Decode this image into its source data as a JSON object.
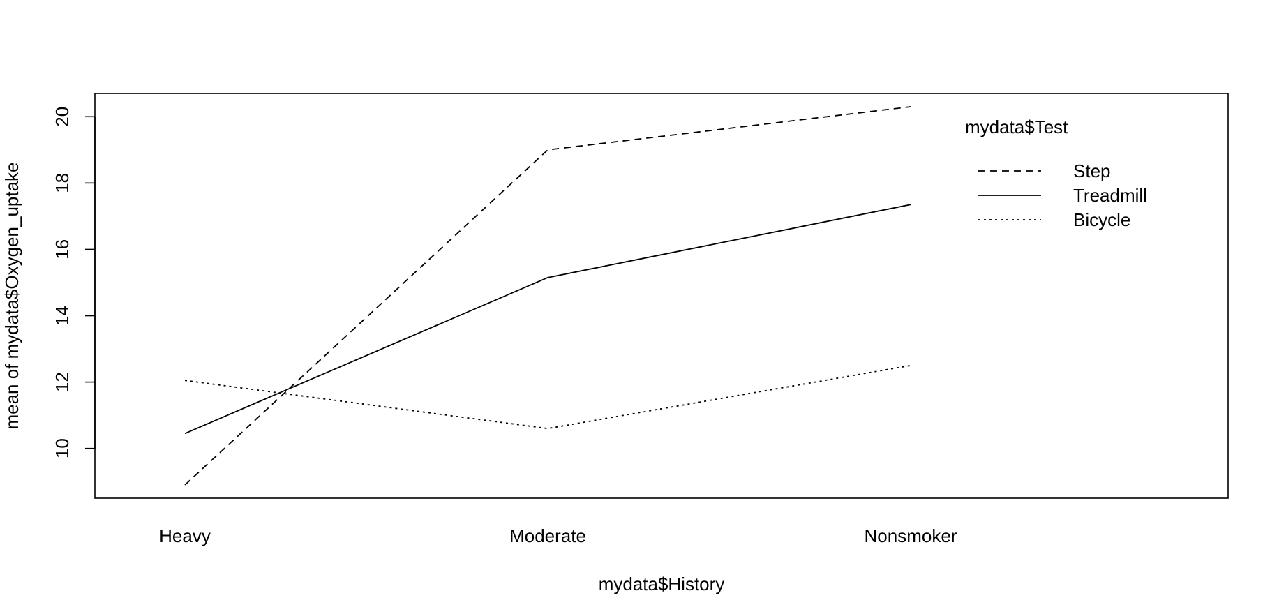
{
  "chart_data": {
    "type": "line",
    "title": "",
    "xlabel": "mydata$History",
    "ylabel": "mean of  mydata$Oxygen_uptake",
    "categories": [
      "Heavy",
      "Moderate",
      "Nonsmoker"
    ],
    "ylim": [
      8.5,
      20.7
    ],
    "yticks": [
      10,
      12,
      14,
      16,
      18,
      20
    ],
    "grid": false,
    "legend": {
      "title": "mydata$Test",
      "placement": "top-right"
    },
    "series": [
      {
        "name": "Step",
        "values": [
          8.9,
          19.0,
          20.3
        ],
        "line_style": "dashed",
        "color": "#000000"
      },
      {
        "name": "Treadmill",
        "values": [
          10.45,
          15.15,
          17.35
        ],
        "line_style": "solid",
        "color": "#000000"
      },
      {
        "name": "Bicycle",
        "values": [
          12.05,
          10.6,
          12.5
        ],
        "line_style": "dotted",
        "color": "#000000"
      }
    ]
  }
}
